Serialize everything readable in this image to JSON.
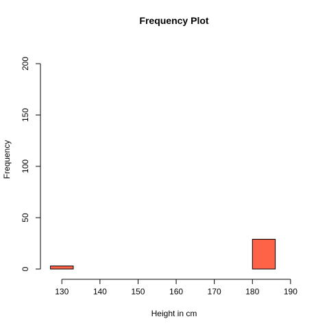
{
  "chart_data": {
    "type": "bar",
    "title": "Frequency Plot",
    "xlabel": "Height in cm",
    "ylabel": "Frequency",
    "xlim": [
      126.9,
      192.0
    ],
    "ylim": [
      0,
      200
    ],
    "x_ticks": [
      130,
      140,
      150,
      160,
      170,
      180,
      190
    ],
    "y_ticks": [
      0,
      50,
      100,
      150,
      200
    ],
    "bins": [
      {
        "x0": 127.0,
        "x1": 133.0,
        "count": 3
      },
      {
        "x0": 133.0,
        "x1": 180.0,
        "count": 0
      },
      {
        "x0": 180.0,
        "x1": 186.0,
        "count": 29
      }
    ],
    "bar_fill": "#ff6347",
    "bar_stroke": "#000000",
    "axis_color": "#000000",
    "grid": false,
    "legend": "none"
  }
}
